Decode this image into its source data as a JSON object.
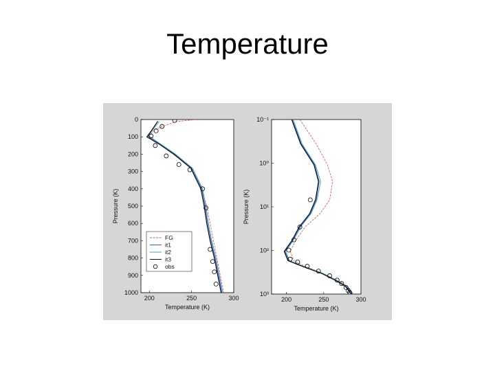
{
  "slide": {
    "title": "Temperature"
  },
  "chart_data": [
    {
      "type": "line",
      "ylabel": "Pressure (K)",
      "xlabel": "Temperature (K)",
      "xlim": [
        190,
        300
      ],
      "ylim": [
        0,
        1000
      ],
      "y_reversed": true,
      "x_ticks": [
        "200",
        "250",
        "300"
      ],
      "y_ticks": [
        "0",
        "100",
        "200",
        "300",
        "400",
        "500",
        "600",
        "700",
        "800",
        "900",
        "1000"
      ],
      "legend": {
        "position": "bottom-left",
        "entries": [
          "FG",
          "it1",
          "it2",
          "it3",
          "obs"
        ]
      },
      "series": [
        {
          "name": "FG",
          "color": "#e06060",
          "points": [
            [
              255,
              0
            ],
            [
              232,
              12
            ],
            [
              215,
              40
            ],
            [
              205,
              65
            ],
            [
              200,
              95
            ],
            [
              212,
              140
            ],
            [
              228,
              200
            ],
            [
              250,
              275
            ],
            [
              262,
              400
            ],
            [
              268,
              500
            ],
            [
              272,
              600
            ],
            [
              276,
              700
            ],
            [
              280,
              800
            ],
            [
              284,
              900
            ],
            [
              288,
              1000
            ]
          ]
        },
        {
          "name": "it1",
          "color": "#3b5bb8",
          "points": [
            [
              210,
              10
            ],
            [
              203,
              60
            ],
            [
              198,
              95
            ],
            [
              212,
              140
            ],
            [
              230,
              200
            ],
            [
              250,
              280
            ],
            [
              262,
              400
            ],
            [
              266,
              500
            ],
            [
              269,
              600
            ],
            [
              273,
              700
            ],
            [
              278,
              800
            ],
            [
              282,
              900
            ],
            [
              286,
              1000
            ]
          ]
        },
        {
          "name": "it2",
          "color": "#3aa0c8",
          "points": [
            [
              212,
              10
            ],
            [
              204,
              60
            ],
            [
              199,
              95
            ],
            [
              213,
              140
            ],
            [
              231,
              200
            ],
            [
              251,
              280
            ],
            [
              263,
              400
            ],
            [
              267,
              500
            ],
            [
              270,
              600
            ],
            [
              274,
              700
            ],
            [
              279,
              800
            ],
            [
              283,
              900
            ],
            [
              287,
              1000
            ]
          ]
        },
        {
          "name": "it3",
          "color": "#111111",
          "points": [
            [
              210,
              10
            ],
            [
              203,
              60
            ],
            [
              197,
              100
            ],
            [
              211,
              140
            ],
            [
              229,
              200
            ],
            [
              249,
              280
            ],
            [
              261,
              400
            ],
            [
              265,
              500
            ],
            [
              268,
              600
            ],
            [
              272,
              700
            ],
            [
              277,
              800
            ],
            [
              281,
              900
            ],
            [
              285,
              1000
            ]
          ]
        }
      ],
      "observations": {
        "name": "obs",
        "points": [
          [
            230,
            5
          ],
          [
            215,
            40
          ],
          [
            208,
            65
          ],
          [
            202,
            95
          ],
          [
            207,
            150
          ],
          [
            220,
            210
          ],
          [
            235,
            260
          ],
          [
            248,
            290
          ],
          [
            263,
            400
          ],
          [
            267,
            510
          ],
          [
            272,
            750
          ],
          [
            275,
            820
          ],
          [
            277,
            880
          ],
          [
            279,
            950
          ]
        ]
      }
    },
    {
      "type": "line",
      "ylabel": "Pressure (K)",
      "xlabel": "Temperature (K)",
      "xlim": [
        180,
        300
      ],
      "y_scale": "log",
      "y_reversed": true,
      "ylim": [
        0.01,
        1000
      ],
      "x_ticks": [
        "200",
        "250",
        "300"
      ],
      "y_ticks": [
        "10⁻¹",
        "10⁰",
        "10¹",
        "10²",
        "10³"
      ],
      "series": [
        {
          "name": "FG",
          "color": "#e06060",
          "points": [
            [
              218,
              0.01
            ],
            [
              240,
              0.05
            ],
            [
              255,
              0.2
            ],
            [
              262,
              0.6
            ],
            [
              258,
              2
            ],
            [
              245,
              5
            ],
            [
              225,
              12
            ],
            [
              212,
              30
            ],
            [
              205,
              60
            ],
            [
              210,
              110
            ],
            [
              225,
              160
            ],
            [
              250,
              260
            ],
            [
              270,
              420
            ],
            [
              282,
              600
            ],
            [
              290,
              1000
            ]
          ]
        },
        {
          "name": "it1",
          "color": "#3b5bb8",
          "points": [
            [
              208,
              0.01
            ],
            [
              220,
              0.05
            ],
            [
              238,
              0.2
            ],
            [
              244,
              0.6
            ],
            [
              240,
              2
            ],
            [
              232,
              5
            ],
            [
              218,
              12
            ],
            [
              208,
              30
            ],
            [
              198,
              60
            ],
            [
              203,
              110
            ],
            [
              222,
              160
            ],
            [
              249,
              260
            ],
            [
              268,
              420
            ],
            [
              280,
              600
            ],
            [
              288,
              1000
            ]
          ]
        },
        {
          "name": "it2",
          "color": "#3aa0c8",
          "points": [
            [
              209,
              0.01
            ],
            [
              221,
              0.05
            ],
            [
              239,
              0.2
            ],
            [
              246,
              0.6
            ],
            [
              241,
              2
            ],
            [
              233,
              5
            ],
            [
              219,
              12
            ],
            [
              209,
              30
            ],
            [
              199,
              60
            ],
            [
              204,
              110
            ],
            [
              223,
              160
            ],
            [
              250,
              260
            ],
            [
              269,
              420
            ],
            [
              281,
              600
            ],
            [
              289,
              1000
            ]
          ]
        },
        {
          "name": "it3",
          "color": "#111111",
          "points": [
            [
              207,
              0.01
            ],
            [
              219,
              0.05
            ],
            [
              237,
              0.2
            ],
            [
              243,
              0.6
            ],
            [
              239,
              2
            ],
            [
              231,
              5
            ],
            [
              217,
              12
            ],
            [
              207,
              30
            ],
            [
              197,
              60
            ],
            [
              202,
              110
            ],
            [
              221,
              160
            ],
            [
              248,
              260
            ],
            [
              267,
              420
            ],
            [
              279,
              600
            ],
            [
              287,
              1000
            ]
          ]
        }
      ],
      "observations": {
        "name": "obs",
        "points": [
          [
            232,
            2
          ],
          [
            218,
            12
          ],
          [
            210,
            28
          ],
          [
            203,
            55
          ],
          [
            205,
            100
          ],
          [
            215,
            120
          ],
          [
            228,
            160
          ],
          [
            243,
            220
          ],
          [
            258,
            300
          ],
          [
            268,
            400
          ],
          [
            274,
            500
          ],
          [
            280,
            650
          ],
          [
            283,
            800
          ],
          [
            285,
            900
          ]
        ]
      }
    }
  ]
}
